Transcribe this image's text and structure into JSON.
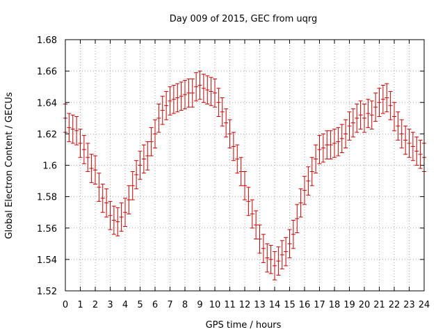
{
  "chart_data": {
    "type": "scatter",
    "title": "Day 009 of 2015, GEC from uqrg",
    "xlabel": "GPS time / hours",
    "ylabel": "Global Electron Content / GECUs",
    "xlim": [
      0,
      24
    ],
    "ylim": [
      1.52,
      1.68
    ],
    "xticks": [
      "0",
      "1",
      "2",
      "3",
      "4",
      "5",
      "6",
      "7",
      "8",
      "9",
      "10",
      "11",
      "12",
      "13",
      "14",
      "15",
      "16",
      "17",
      "18",
      "19",
      "20",
      "21",
      "22",
      "23",
      "24"
    ],
    "yticks": [
      "1.52",
      "1.54",
      "1.56",
      "1.58",
      "1.6",
      "1.62",
      "1.64",
      "1.66",
      "1.68"
    ],
    "grid": true,
    "color": "#c00000",
    "error": 0.009,
    "x": [
      0,
      0.25,
      0.5,
      0.75,
      1,
      1.25,
      1.5,
      1.75,
      2,
      2.25,
      2.5,
      2.75,
      3,
      3.25,
      3.5,
      3.75,
      4,
      4.25,
      4.5,
      4.75,
      5,
      5.25,
      5.5,
      5.75,
      6,
      6.25,
      6.5,
      6.75,
      7,
      7.25,
      7.5,
      7.75,
      8,
      8.25,
      8.5,
      8.75,
      9,
      9.25,
      9.5,
      9.75,
      10,
      10.25,
      10.5,
      10.75,
      11,
      11.25,
      11.5,
      11.75,
      12,
      12.25,
      12.5,
      12.75,
      13,
      13.25,
      13.5,
      13.75,
      14,
      14.25,
      14.5,
      14.75,
      15,
      15.25,
      15.5,
      15.75,
      16,
      16.25,
      16.5,
      16.75,
      17,
      17.25,
      17.5,
      17.75,
      18,
      18.25,
      18.5,
      18.75,
      19,
      19.25,
      19.5,
      19.75,
      20,
      20.25,
      20.5,
      20.75,
      21,
      21.25,
      21.5,
      21.75,
      22,
      22.25,
      22.5,
      22.75,
      23,
      23.25,
      23.5,
      23.75,
      24
    ],
    "y": [
      1.63,
      1.624,
      1.623,
      1.622,
      1.614,
      1.61,
      1.605,
      1.598,
      1.597,
      1.586,
      1.579,
      1.576,
      1.568,
      1.565,
      1.564,
      1.567,
      1.57,
      1.578,
      1.587,
      1.594,
      1.6,
      1.604,
      1.606,
      1.615,
      1.62,
      1.63,
      1.635,
      1.638,
      1.641,
      1.642,
      1.643,
      1.644,
      1.645,
      1.646,
      1.646,
      1.65,
      1.651,
      1.649,
      1.648,
      1.647,
      1.646,
      1.64,
      1.634,
      1.627,
      1.62,
      1.612,
      1.604,
      1.596,
      1.587,
      1.577,
      1.569,
      1.562,
      1.553,
      1.547,
      1.541,
      1.54,
      1.536,
      1.539,
      1.543,
      1.545,
      1.55,
      1.556,
      1.566,
      1.576,
      1.584,
      1.59,
      1.596,
      1.604,
      1.61,
      1.611,
      1.613,
      1.613,
      1.614,
      1.615,
      1.617,
      1.62,
      1.625,
      1.627,
      1.63,
      1.632,
      1.63,
      1.633,
      1.632,
      1.637,
      1.64,
      1.642,
      1.643,
      1.638,
      1.631,
      1.625,
      1.62,
      1.616,
      1.614,
      1.612,
      1.609,
      1.607,
      1.605
    ]
  }
}
